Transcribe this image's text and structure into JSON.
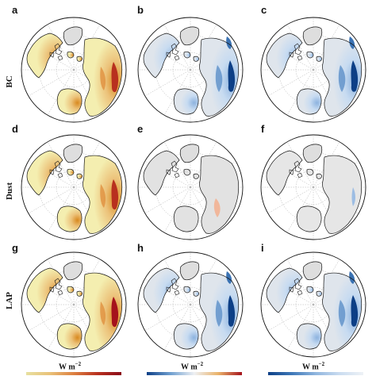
{
  "panels": [
    {
      "letter": "a",
      "row": 0,
      "col": 0,
      "scheme": "warm",
      "intensity": 1.0
    },
    {
      "letter": "b",
      "row": 0,
      "col": 1,
      "scheme": "cool",
      "intensity": 0.8
    },
    {
      "letter": "c",
      "row": 0,
      "col": 2,
      "scheme": "cool",
      "intensity": 1.0
    },
    {
      "letter": "d",
      "row": 1,
      "col": 0,
      "scheme": "warm",
      "intensity": 0.6
    },
    {
      "letter": "e",
      "row": 1,
      "col": 1,
      "scheme": "warmlight",
      "intensity": 0.4
    },
    {
      "letter": "f",
      "row": 1,
      "col": 2,
      "scheme": "coollight",
      "intensity": 0.4
    },
    {
      "letter": "g",
      "row": 2,
      "col": 0,
      "scheme": "warm",
      "intensity": 1.2
    },
    {
      "letter": "h",
      "row": 2,
      "col": 1,
      "scheme": "cool",
      "intensity": 0.9
    },
    {
      "letter": "i",
      "row": 2,
      "col": 2,
      "scheme": "cool",
      "intensity": 1.1
    }
  ],
  "row_labels": [
    "BC",
    "Dust",
    "LAP"
  ],
  "colorbars": [
    {
      "unit": "W m",
      "exponent": "−2",
      "scheme": "warm"
    },
    {
      "unit": "W m",
      "exponent": "−2",
      "scheme": "diverging"
    },
    {
      "unit": "W m",
      "exponent": "−2",
      "scheme": "cool"
    }
  ],
  "colors": {
    "land_gray": "#dcdcdc",
    "coast": "#111111",
    "warm_light": "#f3eeaa",
    "warm_mid": "#eab36a",
    "warm_dark": "#a5121c",
    "cool_light": "#c9daf0",
    "cool_mid": "#6f9fd0",
    "cool_dark": "#0d3f86"
  }
}
